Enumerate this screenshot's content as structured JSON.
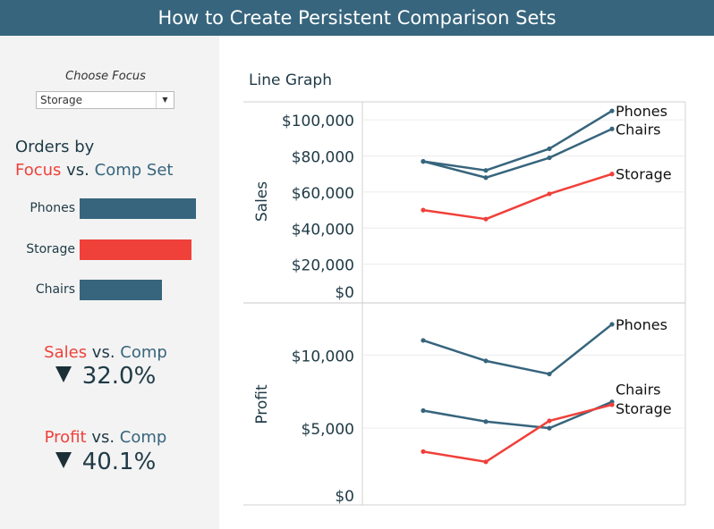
{
  "header": {
    "title": "How to Create Persistent Comparison Sets"
  },
  "sidebar": {
    "focus_label": "Choose Focus",
    "focus_select": {
      "value": "Storage",
      "arrow": "▼"
    },
    "orders": {
      "line1": "Orders by",
      "focus_word": "Focus",
      "vs_word": " vs. ",
      "comp_word": "Comp Set"
    },
    "bars": [
      {
        "label": "Phones",
        "value": 1.0,
        "color": "#37657d"
      },
      {
        "label": "Storage",
        "value": 0.96,
        "color": "#f0403a"
      },
      {
        "label": "Chairs",
        "value": 0.71,
        "color": "#37657d"
      }
    ],
    "kpis": [
      {
        "metric": "Sales",
        "vs": " vs. ",
        "comp": "Comp",
        "value": "32.0%",
        "direction": "down"
      },
      {
        "metric": "Profit",
        "vs": " vs. ",
        "comp": "Comp",
        "value": "40.1%",
        "direction": "down"
      }
    ]
  },
  "graph_title": "Line Graph",
  "colors": {
    "focus": "#f0403a",
    "comp": "#37657d",
    "text": "#1f3a46"
  },
  "chart_data": [
    {
      "type": "line",
      "ylabel": "Sales",
      "ylim": [
        0,
        110000
      ],
      "yticks": [
        0,
        20000,
        40000,
        60000,
        80000,
        100000
      ],
      "ytick_labels": [
        "$0",
        "$20,000",
        "$40,000",
        "$60,000",
        "$80,000",
        "$100,000"
      ],
      "grid": true,
      "series": [
        {
          "name": "Phones",
          "values": [
            77000,
            72000,
            84000,
            105000
          ],
          "color": "#37657d"
        },
        {
          "name": "Chairs",
          "values": [
            77000,
            68000,
            79000,
            95000
          ],
          "color": "#37657d"
        },
        {
          "name": "Storage",
          "values": [
            50000,
            45000,
            59000,
            70000
          ],
          "color": "#f0403a"
        }
      ]
    },
    {
      "type": "line",
      "ylabel": "Profit",
      "ylim": [
        0,
        13500
      ],
      "yticks": [
        0,
        5000,
        10000
      ],
      "ytick_labels": [
        "$0",
        "$5,000",
        "$10,000"
      ],
      "grid": true,
      "series": [
        {
          "name": "Phones",
          "values": [
            11000,
            9600,
            8700,
            12100
          ],
          "color": "#37657d"
        },
        {
          "name": "Chairs",
          "values": [
            6200,
            5450,
            5000,
            6800
          ],
          "color": "#37657d"
        },
        {
          "name": "Storage",
          "values": [
            3400,
            2700,
            5500,
            6600
          ],
          "color": "#f0403a"
        }
      ]
    }
  ]
}
